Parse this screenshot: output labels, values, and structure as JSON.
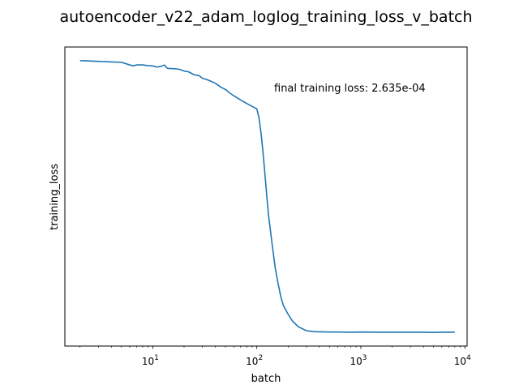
{
  "chart_data": {
    "type": "line",
    "title": "autoencoder_v22_adam_loglog_training_loss_v_batch",
    "xlabel": "batch",
    "ylabel": "training_loss",
    "x_scale": "log",
    "y_scale": "log",
    "x_tick_labels": [
      {
        "base": "10",
        "exp": "1",
        "value": 10
      },
      {
        "base": "10",
        "exp": "2",
        "value": 100
      },
      {
        "base": "10",
        "exp": "3",
        "value": 1000
      },
      {
        "base": "10",
        "exp": "4",
        "value": 10000
      }
    ],
    "xlim": [
      1.43,
      10500
    ],
    "annotation": "final training loss: 2.635e-04",
    "grid": false,
    "line_color": "#1f77b4",
    "series": [
      {
        "x": [
          2,
          3,
          4,
          5,
          6,
          6.5,
          7,
          8,
          9,
          10,
          11,
          12,
          13,
          13.5,
          14,
          16,
          18,
          20,
          22,
          25,
          28,
          30,
          33,
          36,
          40,
          45,
          50,
          55,
          60,
          70,
          80,
          90,
          100,
          105,
          110,
          115,
          120,
          125,
          130,
          140,
          150,
          160,
          170,
          180,
          200,
          220,
          250,
          300,
          350,
          400,
          500,
          600,
          800,
          1000,
          1500,
          2000,
          3000,
          4000,
          5000,
          6000,
          7000,
          8000
        ],
        "y": [
          0.0305,
          0.0301,
          0.0298,
          0.0296,
          0.0283,
          0.0278,
          0.0283,
          0.0283,
          0.0279,
          0.0278,
          0.0272,
          0.0276,
          0.0282,
          0.0271,
          0.0266,
          0.0265,
          0.0262,
          0.0254,
          0.0251,
          0.0238,
          0.0234,
          0.0224,
          0.0219,
          0.0213,
          0.0205,
          0.0192,
          0.0184,
          0.0173,
          0.0165,
          0.0153,
          0.0144,
          0.0137,
          0.0131,
          0.0112,
          0.0085,
          0.006,
          0.0041,
          0.0028,
          0.002,
          0.00125,
          0.00082,
          0.00062,
          0.00049,
          0.00042,
          0.00036,
          0.00032,
          0.00029,
          0.00027,
          0.000266,
          0.000265,
          0.000264,
          0.000264,
          0.000263,
          0.000264,
          0.000263,
          0.000263,
          0.000263,
          0.000263,
          0.000262,
          0.000263,
          0.000263,
          0.0002635
        ]
      }
    ]
  }
}
